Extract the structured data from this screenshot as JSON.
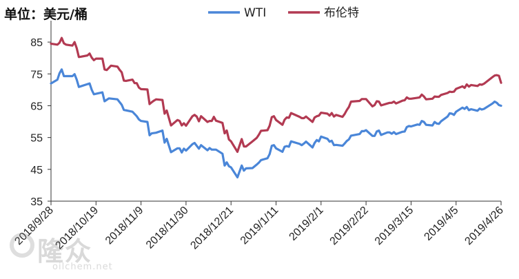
{
  "chart_data": {
    "type": "line",
    "ylabel": "单位：美元/桶",
    "ylim": [
      35,
      90
    ],
    "yticks": [
      35,
      45,
      55,
      65,
      75,
      85
    ],
    "xlim": [
      "2018-09-28",
      "2019-04-26"
    ],
    "xticks": [
      "2018/9/28",
      "2018/10/19",
      "2018/11/9",
      "2018/11/30",
      "2018/12/21",
      "2019/1/11",
      "2019/2/1",
      "2019/2/22",
      "2019/3/15",
      "2019/4/5",
      "2019/4/26"
    ],
    "grid": false,
    "legend": "top-center",
    "series": [
      {
        "name": "WTI",
        "color": "#4a86d8",
        "points": [
          [
            "2018-09-28",
            72.0
          ],
          [
            "2018-10-01",
            73.2
          ],
          [
            "2018-10-02",
            75.2
          ],
          [
            "2018-10-03",
            76.4
          ],
          [
            "2018-10-04",
            74.3
          ],
          [
            "2018-10-08",
            74.3
          ],
          [
            "2018-10-09",
            74.9
          ],
          [
            "2018-10-10",
            73.2
          ],
          [
            "2018-10-11",
            70.9
          ],
          [
            "2018-10-15",
            71.8
          ],
          [
            "2018-10-16",
            72.0
          ],
          [
            "2018-10-17",
            70.0
          ],
          [
            "2018-10-18",
            68.6
          ],
          [
            "2018-10-22",
            69.2
          ],
          [
            "2018-10-23",
            66.4
          ],
          [
            "2018-10-25",
            67.3
          ],
          [
            "2018-10-29",
            67.0
          ],
          [
            "2018-10-31",
            65.3
          ],
          [
            "2018-11-01",
            63.7
          ],
          [
            "2018-11-05",
            63.1
          ],
          [
            "2018-11-07",
            61.7
          ],
          [
            "2018-11-08",
            60.7
          ],
          [
            "2018-11-09",
            60.2
          ],
          [
            "2018-11-12",
            59.9
          ],
          [
            "2018-11-13",
            55.7
          ],
          [
            "2018-11-14",
            56.3
          ],
          [
            "2018-11-16",
            56.5
          ],
          [
            "2018-11-19",
            57.2
          ],
          [
            "2018-11-20",
            53.4
          ],
          [
            "2018-11-21",
            54.6
          ],
          [
            "2018-11-23",
            50.4
          ],
          [
            "2018-11-26",
            51.6
          ],
          [
            "2018-11-27",
            51.6
          ],
          [
            "2018-11-28",
            50.3
          ],
          [
            "2018-11-29",
            51.5
          ],
          [
            "2018-11-30",
            50.9
          ],
          [
            "2018-12-03",
            52.9
          ],
          [
            "2018-12-04",
            53.3
          ],
          [
            "2018-12-06",
            51.5
          ],
          [
            "2018-12-07",
            52.6
          ],
          [
            "2018-12-10",
            51.0
          ],
          [
            "2018-12-11",
            51.7
          ],
          [
            "2018-12-12",
            51.2
          ],
          [
            "2018-12-14",
            51.2
          ],
          [
            "2018-12-17",
            49.9
          ],
          [
            "2018-12-18",
            46.2
          ],
          [
            "2018-12-19",
            47.2
          ],
          [
            "2018-12-20",
            46.0
          ],
          [
            "2018-12-21",
            45.6
          ],
          [
            "2018-12-24",
            42.5
          ],
          [
            "2018-12-26",
            46.2
          ],
          [
            "2018-12-27",
            44.6
          ],
          [
            "2018-12-28",
            45.3
          ],
          [
            "2018-12-31",
            45.4
          ],
          [
            "2019-01-02",
            46.5
          ],
          [
            "2019-01-03",
            47.1
          ],
          [
            "2019-01-04",
            47.9
          ],
          [
            "2019-01-07",
            48.5
          ],
          [
            "2019-01-08",
            49.8
          ],
          [
            "2019-01-09",
            52.4
          ],
          [
            "2019-01-10",
            52.6
          ],
          [
            "2019-01-11",
            51.6
          ],
          [
            "2019-01-14",
            50.5
          ],
          [
            "2019-01-15",
            52.1
          ],
          [
            "2019-01-16",
            52.3
          ],
          [
            "2019-01-17",
            52.1
          ],
          [
            "2019-01-18",
            53.8
          ],
          [
            "2019-01-22",
            53.0
          ],
          [
            "2019-01-23",
            52.6
          ],
          [
            "2019-01-24",
            53.1
          ],
          [
            "2019-01-25",
            53.7
          ],
          [
            "2019-01-28",
            51.9
          ],
          [
            "2019-01-29",
            53.3
          ],
          [
            "2019-01-30",
            54.2
          ],
          [
            "2019-01-31",
            53.8
          ],
          [
            "2019-02-01",
            55.3
          ],
          [
            "2019-02-04",
            54.6
          ],
          [
            "2019-02-05",
            53.7
          ],
          [
            "2019-02-06",
            54.0
          ],
          [
            "2019-02-07",
            52.6
          ],
          [
            "2019-02-08",
            52.7
          ],
          [
            "2019-02-11",
            52.4
          ],
          [
            "2019-02-12",
            53.1
          ],
          [
            "2019-02-13",
            53.9
          ],
          [
            "2019-02-14",
            54.4
          ],
          [
            "2019-02-15",
            55.6
          ],
          [
            "2019-02-19",
            56.1
          ],
          [
            "2019-02-20",
            57.0
          ],
          [
            "2019-02-21",
            57.0
          ],
          [
            "2019-02-22",
            57.3
          ],
          [
            "2019-02-25",
            55.5
          ],
          [
            "2019-02-26",
            55.5
          ],
          [
            "2019-02-27",
            56.9
          ],
          [
            "2019-02-28",
            57.2
          ],
          [
            "2019-03-01",
            55.8
          ],
          [
            "2019-03-04",
            56.6
          ],
          [
            "2019-03-05",
            56.6
          ],
          [
            "2019-03-06",
            56.2
          ],
          [
            "2019-03-07",
            56.7
          ],
          [
            "2019-03-08",
            56.1
          ],
          [
            "2019-03-11",
            56.8
          ],
          [
            "2019-03-12",
            56.9
          ],
          [
            "2019-03-13",
            58.3
          ],
          [
            "2019-03-14",
            58.6
          ],
          [
            "2019-03-15",
            58.5
          ],
          [
            "2019-03-18",
            59.1
          ],
          [
            "2019-03-19",
            59.0
          ],
          [
            "2019-03-20",
            60.2
          ],
          [
            "2019-03-21",
            59.9
          ],
          [
            "2019-03-22",
            59.0
          ],
          [
            "2019-03-25",
            58.8
          ],
          [
            "2019-03-26",
            59.9
          ],
          [
            "2019-03-27",
            59.4
          ],
          [
            "2019-03-28",
            59.3
          ],
          [
            "2019-03-29",
            60.1
          ],
          [
            "2019-04-01",
            61.6
          ],
          [
            "2019-04-02",
            62.6
          ],
          [
            "2019-04-03",
            62.5
          ],
          [
            "2019-04-04",
            62.1
          ],
          [
            "2019-04-05",
            63.1
          ],
          [
            "2019-04-08",
            64.4
          ],
          [
            "2019-04-09",
            64.0
          ],
          [
            "2019-04-10",
            64.6
          ],
          [
            "2019-04-11",
            63.6
          ],
          [
            "2019-04-12",
            63.9
          ],
          [
            "2019-04-15",
            63.4
          ],
          [
            "2019-04-16",
            64.1
          ],
          [
            "2019-04-17",
            63.8
          ],
          [
            "2019-04-18",
            64.0
          ],
          [
            "2019-04-22",
            65.7
          ],
          [
            "2019-04-23",
            66.3
          ],
          [
            "2019-04-24",
            65.9
          ],
          [
            "2019-04-25",
            65.2
          ],
          [
            "2019-04-26",
            65.0
          ]
        ]
      },
      {
        "name": "布伦特",
        "color": "#b23a52",
        "points": [
          [
            "2018-09-28",
            84.5
          ],
          [
            "2018-10-01",
            84.2
          ],
          [
            "2018-10-02",
            84.8
          ],
          [
            "2018-10-03",
            86.3
          ],
          [
            "2018-10-04",
            84.6
          ],
          [
            "2018-10-05",
            84.2
          ],
          [
            "2018-10-08",
            83.9
          ],
          [
            "2018-10-09",
            85.0
          ],
          [
            "2018-10-10",
            83.1
          ],
          [
            "2018-10-11",
            80.3
          ],
          [
            "2018-10-12",
            80.4
          ],
          [
            "2018-10-15",
            80.8
          ],
          [
            "2018-10-16",
            81.4
          ],
          [
            "2018-10-17",
            80.1
          ],
          [
            "2018-10-18",
            79.3
          ],
          [
            "2018-10-19",
            79.8
          ],
          [
            "2018-10-22",
            79.8
          ],
          [
            "2018-10-23",
            76.4
          ],
          [
            "2018-10-24",
            76.2
          ],
          [
            "2018-10-25",
            76.9
          ],
          [
            "2018-10-26",
            77.6
          ],
          [
            "2018-10-29",
            77.3
          ],
          [
            "2018-10-30",
            76.3
          ],
          [
            "2018-10-31",
            75.5
          ],
          [
            "2018-11-01",
            72.9
          ],
          [
            "2018-11-02",
            72.8
          ],
          [
            "2018-11-05",
            73.2
          ],
          [
            "2018-11-06",
            72.1
          ],
          [
            "2018-11-07",
            72.1
          ],
          [
            "2018-11-08",
            70.7
          ],
          [
            "2018-11-09",
            70.2
          ],
          [
            "2018-11-12",
            70.1
          ],
          [
            "2018-11-13",
            65.5
          ],
          [
            "2018-11-14",
            66.1
          ],
          [
            "2018-11-15",
            66.6
          ],
          [
            "2018-11-16",
            67.0
          ],
          [
            "2018-11-19",
            66.8
          ],
          [
            "2018-11-20",
            62.5
          ],
          [
            "2018-11-21",
            63.5
          ],
          [
            "2018-11-23",
            58.8
          ],
          [
            "2018-11-26",
            60.5
          ],
          [
            "2018-11-27",
            60.2
          ],
          [
            "2018-11-28",
            58.8
          ],
          [
            "2018-11-29",
            59.5
          ],
          [
            "2018-11-30",
            58.7
          ],
          [
            "2018-12-03",
            61.7
          ],
          [
            "2018-12-04",
            62.1
          ],
          [
            "2018-12-05",
            61.6
          ],
          [
            "2018-12-06",
            60.1
          ],
          [
            "2018-12-07",
            61.7
          ],
          [
            "2018-12-10",
            59.9
          ],
          [
            "2018-12-11",
            60.2
          ],
          [
            "2018-12-12",
            60.2
          ],
          [
            "2018-12-13",
            61.5
          ],
          [
            "2018-12-14",
            60.3
          ],
          [
            "2018-12-17",
            59.6
          ],
          [
            "2018-12-18",
            56.3
          ],
          [
            "2018-12-19",
            57.2
          ],
          [
            "2018-12-20",
            54.4
          ],
          [
            "2018-12-21",
            53.8
          ],
          [
            "2018-12-24",
            50.5
          ],
          [
            "2018-12-26",
            54.5
          ],
          [
            "2018-12-27",
            52.2
          ],
          [
            "2018-12-28",
            52.2
          ],
          [
            "2018-12-31",
            53.8
          ],
          [
            "2019-01-02",
            54.9
          ],
          [
            "2019-01-03",
            55.9
          ],
          [
            "2019-01-04",
            57.1
          ],
          [
            "2019-01-07",
            57.3
          ],
          [
            "2019-01-08",
            58.7
          ],
          [
            "2019-01-09",
            61.4
          ],
          [
            "2019-01-10",
            61.7
          ],
          [
            "2019-01-11",
            60.5
          ],
          [
            "2019-01-14",
            59.0
          ],
          [
            "2019-01-15",
            60.6
          ],
          [
            "2019-01-16",
            61.3
          ],
          [
            "2019-01-17",
            61.2
          ],
          [
            "2019-01-18",
            62.7
          ],
          [
            "2019-01-22",
            61.5
          ],
          [
            "2019-01-23",
            61.1
          ],
          [
            "2019-01-24",
            61.1
          ],
          [
            "2019-01-25",
            61.6
          ],
          [
            "2019-01-28",
            59.9
          ],
          [
            "2019-01-29",
            61.3
          ],
          [
            "2019-01-30",
            61.7
          ],
          [
            "2019-01-31",
            61.9
          ],
          [
            "2019-02-01",
            62.8
          ],
          [
            "2019-02-04",
            62.5
          ],
          [
            "2019-02-05",
            61.9
          ],
          [
            "2019-02-06",
            62.7
          ],
          [
            "2019-02-07",
            61.6
          ],
          [
            "2019-02-08",
            62.1
          ],
          [
            "2019-02-11",
            61.5
          ],
          [
            "2019-02-12",
            62.4
          ],
          [
            "2019-02-13",
            63.6
          ],
          [
            "2019-02-14",
            64.6
          ],
          [
            "2019-02-15",
            66.3
          ],
          [
            "2019-02-19",
            66.5
          ],
          [
            "2019-02-20",
            67.1
          ],
          [
            "2019-02-21",
            67.1
          ],
          [
            "2019-02-22",
            67.1
          ],
          [
            "2019-02-25",
            64.8
          ],
          [
            "2019-02-26",
            65.2
          ],
          [
            "2019-02-27",
            66.4
          ],
          [
            "2019-02-28",
            66.3
          ],
          [
            "2019-03-01",
            65.1
          ],
          [
            "2019-03-04",
            65.7
          ],
          [
            "2019-03-05",
            65.9
          ],
          [
            "2019-03-06",
            65.9
          ],
          [
            "2019-03-07",
            66.3
          ],
          [
            "2019-03-08",
            65.7
          ],
          [
            "2019-03-11",
            66.6
          ],
          [
            "2019-03-12",
            66.7
          ],
          [
            "2019-03-13",
            67.6
          ],
          [
            "2019-03-14",
            67.2
          ],
          [
            "2019-03-15",
            67.2
          ],
          [
            "2019-03-18",
            67.5
          ],
          [
            "2019-03-19",
            67.6
          ],
          [
            "2019-03-20",
            68.5
          ],
          [
            "2019-03-21",
            67.9
          ],
          [
            "2019-03-22",
            67.0
          ],
          [
            "2019-03-25",
            67.2
          ],
          [
            "2019-03-26",
            67.9
          ],
          [
            "2019-03-27",
            67.8
          ],
          [
            "2019-03-28",
            67.8
          ],
          [
            "2019-03-29",
            68.4
          ],
          [
            "2019-04-01",
            69.0
          ],
          [
            "2019-04-02",
            69.4
          ],
          [
            "2019-04-03",
            69.3
          ],
          [
            "2019-04-04",
            69.4
          ],
          [
            "2019-04-05",
            70.3
          ],
          [
            "2019-04-08",
            71.1
          ],
          [
            "2019-04-09",
            70.6
          ],
          [
            "2019-04-10",
            71.7
          ],
          [
            "2019-04-11",
            71.0
          ],
          [
            "2019-04-12",
            71.5
          ],
          [
            "2019-04-15",
            71.2
          ],
          [
            "2019-04-16",
            71.7
          ],
          [
            "2019-04-17",
            71.6
          ],
          [
            "2019-04-18",
            71.9
          ],
          [
            "2019-04-22",
            74.0
          ],
          [
            "2019-04-23",
            74.5
          ],
          [
            "2019-04-24",
            74.6
          ],
          [
            "2019-04-25",
            74.4
          ],
          [
            "2019-04-26",
            72.2
          ]
        ]
      }
    ]
  },
  "watermark": {
    "brand": "隆众",
    "domain": "oilchem.net"
  }
}
